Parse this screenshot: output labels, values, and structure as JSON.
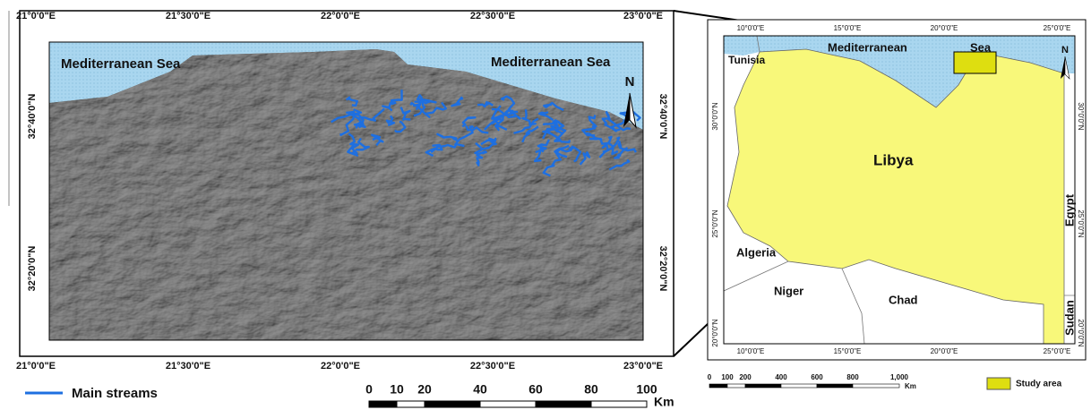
{
  "study_map": {
    "top_ticks": [
      "21°0'0\"E",
      "21°30'0\"E",
      "22°0'0\"E",
      "22°30'0\"E",
      "23°0'0\"E"
    ],
    "bottom_ticks": [
      "21°0'0\"E",
      "21°30'0\"E",
      "22°0'0\"E",
      "22°30'0\"E",
      "23°0'0\"E"
    ],
    "left_ticks": [
      "32°40'0\"N",
      "32°20'0\"N"
    ],
    "right_ticks": [
      "32°40'0\"N",
      "32°20'0\"N"
    ],
    "labels": [
      "Mediterranean Sea",
      "Mediterranean Sea"
    ],
    "north": "N",
    "legend": "Main streams",
    "scale": {
      "ticks": [
        "0",
        "10",
        "20",
        "40",
        "60",
        "80",
        "100"
      ],
      "unit": "Km"
    }
  },
  "inset_map": {
    "top_ticks": [
      "10°0'0\"E",
      "15°0'0\"E",
      "20°0'0\"E",
      "25°0'0\"E"
    ],
    "bottom_ticks": [
      "10°0'0\"E",
      "15°0'0\"E",
      "20°0'0\"E",
      "25°0'0\"E"
    ],
    "left_ticks": [
      "30°0'0\"N",
      "25°0'0\"N",
      "20°0'0\"N"
    ],
    "right_ticks": [
      "30°0'0\"N",
      "25°0'0\"N",
      "20°0'0\"N"
    ],
    "labels": {
      "sea_1": "Mediterranean",
      "sea_2": "Sea",
      "tunisia": "Tunisia",
      "libya": "Libya",
      "egypt": "Egypt",
      "algeria": "Algeria",
      "niger": "Niger",
      "chad": "Chad",
      "sudan": "Sudan"
    },
    "north": "N",
    "legend": "Study area",
    "scale": {
      "ticks": [
        "0",
        "100",
        "200",
        "400",
        "600",
        "800",
        "1,000"
      ],
      "unit": "Km"
    }
  }
}
